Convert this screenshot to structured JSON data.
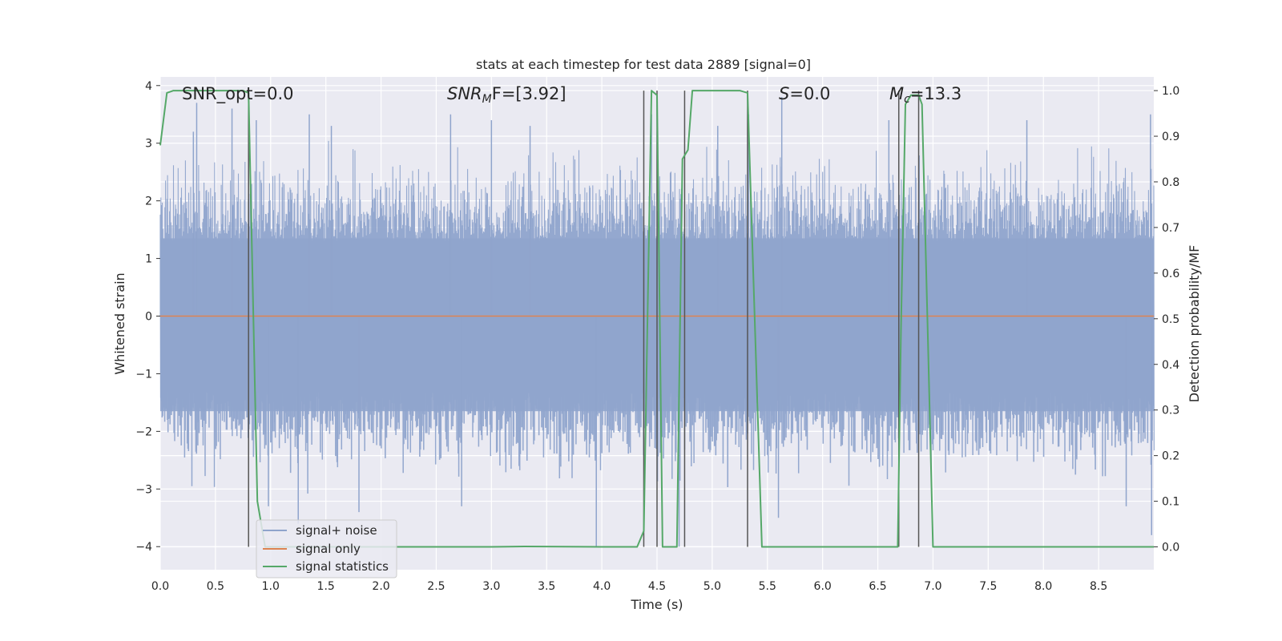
{
  "chart_data": {
    "type": "line",
    "title": "stats at each timestep for test data 2889 [signal=0]",
    "xlabel": "Time (s)",
    "ylabel_left": "Whitened strain",
    "ylabel_right": "Detection probability/MF",
    "xlim": [
      0,
      9.0
    ],
    "ylim_left": [
      -4.4,
      4.15
    ],
    "ylim_right": [
      -0.05,
      1.03
    ],
    "x_ticks": [
      "0.0",
      "0.5",
      "1.0",
      "1.5",
      "2.0",
      "2.5",
      "3.0",
      "3.5",
      "4.0",
      "4.5",
      "5.0",
      "5.5",
      "6.0",
      "6.5",
      "7.0",
      "7.5",
      "8.0",
      "8.5"
    ],
    "y_ticks_left": [
      "4",
      "3",
      "2",
      "1",
      "0",
      "−1",
      "−2",
      "−3",
      "−4"
    ],
    "y_ticks_right": [
      "1.0",
      "0.9",
      "0.8",
      "0.7",
      "0.6",
      "0.5",
      "0.4",
      "0.3",
      "0.2",
      "0.1",
      "0.0"
    ],
    "grid": true,
    "annotations": {
      "snr_opt": "SNR_opt=0.0",
      "snr_mf_sym": "SNR",
      "snr_mf_sub": "M",
      "snr_mf_rest": "F=[3.92]",
      "s_sym": "S",
      "s_rest": "=0.0",
      "mc_sym": "M",
      "mc_sub": "c",
      "mc_rest": "=13.3"
    },
    "legend": {
      "placement": "lower-left",
      "entries": [
        "signal+ noise",
        "signal only",
        "signal statistics"
      ]
    },
    "colors": {
      "noise": "#8fa4cc",
      "signal_only": "#dd8452",
      "statistics": "#55a868",
      "vlines": "#555555",
      "background": "#eaeaf2",
      "grid": "#ffffff"
    },
    "series": [
      {
        "name": "signal+ noise",
        "kind": "noise-band",
        "envelope_upper": 2.0,
        "envelope_lower": -2.0,
        "peaks": [
          [
            0.3,
            3.2
          ],
          [
            0.33,
            3.7
          ],
          [
            0.65,
            3.6
          ],
          [
            0.87,
            3.4
          ],
          [
            1.35,
            3.5
          ],
          [
            1.55,
            3.3
          ],
          [
            2.63,
            3.5
          ],
          [
            3.0,
            3.4
          ],
          [
            3.35,
            3.3
          ],
          [
            4.45,
            3.5
          ],
          [
            5.05,
            3.3
          ],
          [
            5.33,
            3.5
          ],
          [
            5.63,
            3.8
          ],
          [
            6.6,
            3.4
          ],
          [
            7.85,
            3.4
          ],
          [
            8.97,
            3.5
          ],
          [
            0.98,
            -3.3
          ],
          [
            1.25,
            -3.6
          ],
          [
            1.8,
            -3.4
          ],
          [
            3.95,
            -4.0
          ],
          [
            4.7,
            -4.0
          ],
          [
            5.6,
            -3.5
          ],
          [
            8.75,
            -3.3
          ],
          [
            8.98,
            -3.8
          ],
          [
            2.73,
            -3.3
          ]
        ]
      },
      {
        "name": "signal only",
        "x": [
          0,
          9.0
        ],
        "y": [
          0,
          0
        ]
      },
      {
        "name": "signal statistics",
        "x": [
          0,
          0.06,
          0.12,
          0.75,
          0.8,
          0.88,
          0.95,
          1.5,
          2.0,
          3.0,
          3.3,
          4.0,
          4.32,
          4.38,
          4.45,
          4.5,
          4.55,
          4.57,
          4.62,
          4.68,
          4.73,
          4.78,
          4.82,
          5.25,
          5.32,
          5.45,
          6.0,
          6.68,
          6.71,
          6.75,
          6.8,
          6.87,
          6.9,
          6.95,
          7.0,
          7.5,
          9.0
        ],
        "y": [
          0.88,
          0.995,
          1.0,
          1.0,
          0.995,
          0.1,
          0.0,
          0.0,
          0.0,
          0.0,
          0.001,
          0.0,
          0.0,
          0.035,
          1.0,
          0.99,
          0.0,
          0.0,
          0.0,
          0.0,
          0.85,
          0.87,
          1.0,
          1.0,
          0.995,
          0.0,
          0.0,
          0.0,
          0.48,
          0.97,
          0.99,
          0.99,
          0.97,
          0.49,
          0.0,
          0.0,
          0.0
        ]
      }
    ],
    "vlines_x": [
      0.8,
      4.38,
      4.5,
      4.75,
      5.32,
      6.69,
      6.87
    ]
  }
}
